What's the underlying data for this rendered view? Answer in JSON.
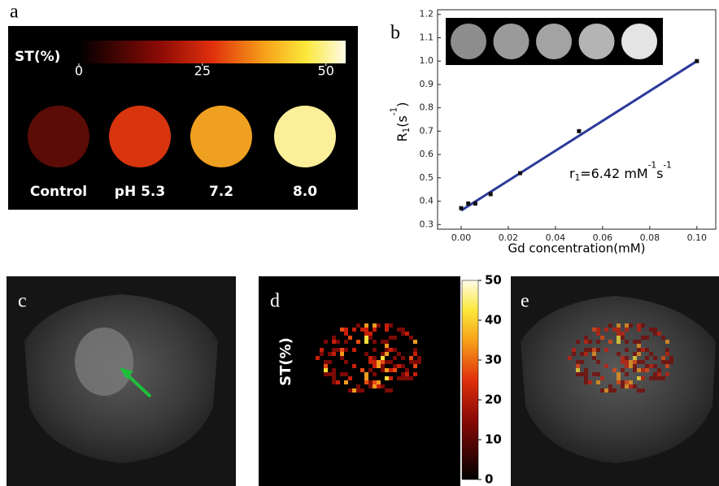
{
  "panel_labels": [
    "a",
    "b",
    "c",
    "d",
    "e"
  ],
  "panel_a": {
    "colorbar_label": "ST(%)",
    "colorbar_lim": [
      0,
      54
    ],
    "colorbar_ticks": [
      0,
      25,
      50
    ],
    "samples": [
      "Control",
      "pH 5.3",
      "7.2",
      "8.0"
    ]
  },
  "chart_data": {
    "type": "scatter",
    "xlabel": "Gd concentration(mM)",
    "ylabel": [
      "R",
      "1",
      "(s",
      "-1",
      ")"
    ],
    "annotation": [
      "r",
      "1",
      "=6.42 mM",
      "-1",
      "s",
      "-1"
    ],
    "x": [
      0,
      0.003,
      0.006,
      0.0125,
      0.025,
      0.05,
      0.1
    ],
    "values": [
      0.37,
      0.39,
      0.39,
      0.43,
      0.52,
      0.7,
      1.0
    ],
    "color": "#111111",
    "fit": {
      "x": [
        0,
        0.1
      ],
      "values": [
        0.36,
        1.0
      ],
      "color": "#2b3a9a"
    },
    "xlim": [
      -0.01,
      0.108
    ],
    "ylim": [
      0.28,
      1.22
    ],
    "xticks": [
      {
        "value": 0,
        "label": "0.00"
      },
      {
        "value": 0.02,
        "label": "0.02"
      },
      {
        "value": 0.04,
        "label": "0.04"
      },
      {
        "value": 0.06,
        "label": "0.06"
      },
      {
        "value": 0.08,
        "label": "0.08"
      },
      {
        "value": 0.1,
        "label": "0.10"
      }
    ],
    "yticks": [
      0.3,
      0.4,
      0.5,
      0.6,
      0.7,
      0.8,
      0.9,
      {
        "value": 1,
        "label": "1.0"
      },
      1.1,
      1.2
    ]
  },
  "panel_d": {
    "colorbar_label": "ST(%)",
    "colorbar_lim": [
      0,
      50
    ],
    "colorbar_ticks": [
      0,
      10,
      20,
      30,
      40,
      50
    ]
  }
}
